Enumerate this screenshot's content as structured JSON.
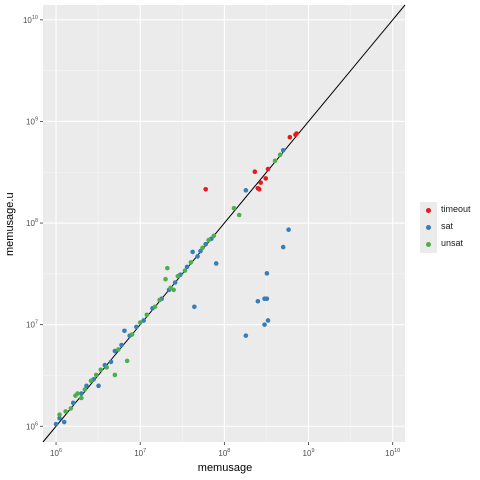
{
  "chart_data": {
    "type": "scatter",
    "xlabel": "memusage",
    "ylabel": "memusage.u",
    "x_scale": "log10",
    "y_scale": "log10",
    "xlim": [
      700000,
      14000000000
    ],
    "ylim": [
      700000,
      14000000000
    ],
    "x_ticks": [
      1000000,
      10000000,
      100000000,
      1000000000,
      10000000000
    ],
    "y_ticks": [
      1000000,
      10000000,
      100000000,
      1000000000,
      10000000000
    ],
    "tick_labels": [
      "10^6",
      "10^7",
      "10^8",
      "10^9",
      "10^10"
    ],
    "grid": true,
    "background": "#ebebeb",
    "reference_line": "y = x",
    "legend_position": "right",
    "colors": {
      "timeout": "#e41a1c",
      "sat": "#377eb8",
      "unsat": "#4daf4a"
    },
    "series": [
      {
        "name": "timeout",
        "points": [
          [
            60000000,
            215000000
          ],
          [
            230000000,
            320000000
          ],
          [
            250000000,
            220000000
          ],
          [
            260000000,
            215000000
          ],
          [
            270000000,
            250000000
          ],
          [
            310000000,
            275000000
          ],
          [
            330000000,
            340000000
          ],
          [
            600000000,
            700000000
          ],
          [
            700000000,
            740000000
          ],
          [
            720000000,
            760000000
          ]
        ]
      },
      {
        "name": "sat",
        "points": [
          [
            1000000,
            1050000
          ],
          [
            1100000,
            1200000
          ],
          [
            1250000,
            1100000
          ],
          [
            1600000,
            1700000
          ],
          [
            2000000,
            2100000
          ],
          [
            2300000,
            2500000
          ],
          [
            2800000,
            2900000
          ],
          [
            3200000,
            2500000
          ],
          [
            3800000,
            4000000
          ],
          [
            4500000,
            4300000
          ],
          [
            5000000,
            5500000
          ],
          [
            6000000,
            6300000
          ],
          [
            6500000,
            8700000
          ],
          [
            7500000,
            7800000
          ],
          [
            9000000,
            9500000
          ],
          [
            11000000,
            11000000
          ],
          [
            14000000,
            14500000
          ],
          [
            18000000,
            18000000
          ],
          [
            22000000,
            22000000
          ],
          [
            26000000,
            26000000
          ],
          [
            30000000,
            31000000
          ],
          [
            36000000,
            37000000
          ],
          [
            42000000,
            52000000
          ],
          [
            44000000,
            15000000
          ],
          [
            48000000,
            47000000
          ],
          [
            52000000,
            53000000
          ],
          [
            60000000,
            62000000
          ],
          [
            70000000,
            70000000
          ],
          [
            80000000,
            40000000
          ],
          [
            180000000,
            210000000
          ],
          [
            180000000,
            7800000
          ],
          [
            250000000,
            17000000
          ],
          [
            300000000,
            10000000
          ],
          [
            300000000,
            18000000
          ],
          [
            320000000,
            32000000
          ],
          [
            320000000,
            18000000
          ],
          [
            330000000,
            11000000
          ],
          [
            500000000,
            58000000
          ],
          [
            580000000,
            86000000
          ],
          [
            500000000,
            520000000
          ]
        ]
      },
      {
        "name": "unsat",
        "points": [
          [
            1100000,
            1300000
          ],
          [
            1300000,
            1400000
          ],
          [
            1500000,
            1500000
          ],
          [
            1700000,
            2000000
          ],
          [
            1800000,
            2100000
          ],
          [
            2000000,
            1900000
          ],
          [
            2200000,
            2300000
          ],
          [
            2600000,
            2800000
          ],
          [
            3000000,
            3200000
          ],
          [
            3400000,
            3600000
          ],
          [
            4000000,
            3800000
          ],
          [
            5000000,
            3200000
          ],
          [
            5500000,
            5700000
          ],
          [
            7000000,
            4400000
          ],
          [
            8000000,
            8000000
          ],
          [
            10000000,
            10500000
          ],
          [
            12000000,
            12500000
          ],
          [
            15000000,
            15000000
          ],
          [
            17000000,
            17500000
          ],
          [
            20000000,
            28000000
          ],
          [
            21000000,
            36000000
          ],
          [
            23000000,
            23000000
          ],
          [
            25000000,
            22000000
          ],
          [
            28000000,
            30000000
          ],
          [
            34000000,
            34000000
          ],
          [
            40000000,
            41000000
          ],
          [
            55000000,
            57000000
          ],
          [
            65000000,
            68000000
          ],
          [
            75000000,
            75000000
          ],
          [
            130000000,
            140000000
          ],
          [
            150000000,
            120000000
          ],
          [
            400000000,
            410000000
          ],
          [
            460000000,
            470000000
          ]
        ]
      }
    ]
  }
}
